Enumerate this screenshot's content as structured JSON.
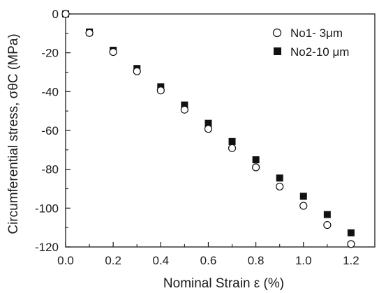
{
  "chart_data": {
    "type": "scatter",
    "xlabel": "Nominal Strain ε (%)",
    "ylabel": "Circumferential stress, σθC (MPa)",
    "xlim": [
      0.0,
      1.3
    ],
    "ylim": [
      -120,
      0
    ],
    "xticks": [
      0.0,
      0.2,
      0.4,
      0.6,
      0.8,
      1.0,
      1.2
    ],
    "yticks": [
      0,
      -20,
      -40,
      -60,
      -80,
      -100,
      -120
    ],
    "xtick_labels": [
      "0.0",
      "0.2",
      "0.4",
      "0.6",
      "0.8",
      "1.0",
      "1.2"
    ],
    "ytick_labels": [
      "0",
      "-20",
      "-40",
      "-60",
      "-80",
      "-100",
      "-120"
    ],
    "grid": false,
    "legend_position": "top-right",
    "series": [
      {
        "name": "No1- 3μm",
        "marker": "open-circle",
        "x": [
          0.0,
          0.1,
          0.2,
          0.3,
          0.4,
          0.5,
          0.6,
          0.7,
          0.8,
          0.9,
          1.0,
          1.1,
          1.2
        ],
        "y": [
          0,
          -9.8,
          -19.6,
          -29.5,
          -39.4,
          -49.3,
          -59.2,
          -69.1,
          -79.0,
          -88.9,
          -98.8,
          -108.7,
          -118.5
        ]
      },
      {
        "name": "No2-10 μm",
        "marker": "filled-square",
        "x": [
          0.0,
          0.1,
          0.2,
          0.3,
          0.4,
          0.5,
          0.6,
          0.7,
          0.8,
          0.9,
          1.0,
          1.1,
          1.2
        ],
        "y": [
          0,
          -9.3,
          -18.7,
          -28.1,
          -37.5,
          -46.9,
          -56.3,
          -65.7,
          -75.1,
          -84.5,
          -93.9,
          -103.3,
          -112.7
        ]
      }
    ]
  }
}
